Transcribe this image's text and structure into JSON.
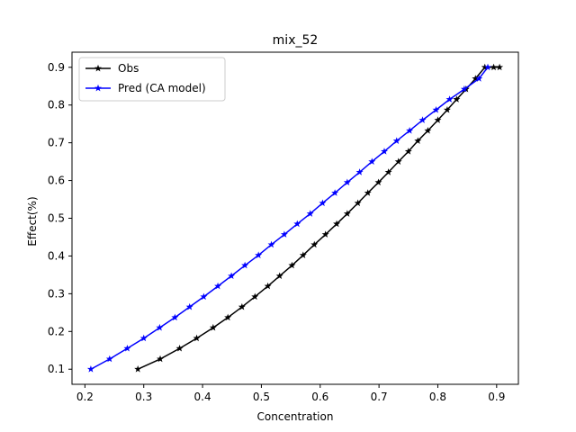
{
  "chart_data": {
    "type": "line",
    "title": "mix_52",
    "xlabel": "Concentration",
    "ylabel": "Effect(%)",
    "xlim": [
      0.178,
      0.937
    ],
    "ylim": [
      0.06,
      0.94
    ],
    "xticks": [
      0.2,
      0.3,
      0.4,
      0.5,
      0.6,
      0.7,
      0.8,
      0.9
    ],
    "yticks": [
      0.1,
      0.2,
      0.3,
      0.4,
      0.5,
      0.6,
      0.7,
      0.8,
      0.9
    ],
    "grid": false,
    "legend_position": "top-left",
    "series": [
      {
        "name": "Obs",
        "color": "#000000",
        "marker": "star",
        "x": [
          0.29,
          0.328,
          0.361,
          0.39,
          0.418,
          0.443,
          0.467,
          0.489,
          0.511,
          0.531,
          0.552,
          0.571,
          0.59,
          0.609,
          0.628,
          0.646,
          0.664,
          0.681,
          0.699,
          0.716,
          0.733,
          0.75,
          0.766,
          0.783,
          0.8,
          0.816,
          0.832,
          0.848,
          0.864,
          0.88,
          0.895,
          0.905
        ],
        "y": [
          0.1,
          0.127,
          0.155,
          0.182,
          0.21,
          0.237,
          0.265,
          0.292,
          0.32,
          0.347,
          0.375,
          0.402,
          0.43,
          0.457,
          0.485,
          0.512,
          0.54,
          0.567,
          0.595,
          0.622,
          0.65,
          0.677,
          0.705,
          0.732,
          0.76,
          0.787,
          0.815,
          0.842,
          0.87,
          0.9,
          0.9,
          0.9
        ]
      },
      {
        "name": "Pred (CA model)",
        "color": "#0000ff",
        "marker": "star",
        "x": [
          0.21,
          0.242,
          0.272,
          0.3,
          0.327,
          0.353,
          0.378,
          0.402,
          0.426,
          0.449,
          0.472,
          0.495,
          0.517,
          0.539,
          0.561,
          0.583,
          0.604,
          0.625,
          0.646,
          0.667,
          0.688,
          0.709,
          0.73,
          0.752,
          0.774,
          0.797,
          0.82,
          0.845,
          0.87,
          0.885
        ],
        "y": [
          0.1,
          0.127,
          0.155,
          0.182,
          0.21,
          0.237,
          0.265,
          0.292,
          0.32,
          0.347,
          0.375,
          0.402,
          0.43,
          0.457,
          0.485,
          0.512,
          0.54,
          0.567,
          0.595,
          0.622,
          0.65,
          0.677,
          0.705,
          0.732,
          0.76,
          0.787,
          0.815,
          0.842,
          0.87,
          0.9
        ]
      }
    ]
  }
}
